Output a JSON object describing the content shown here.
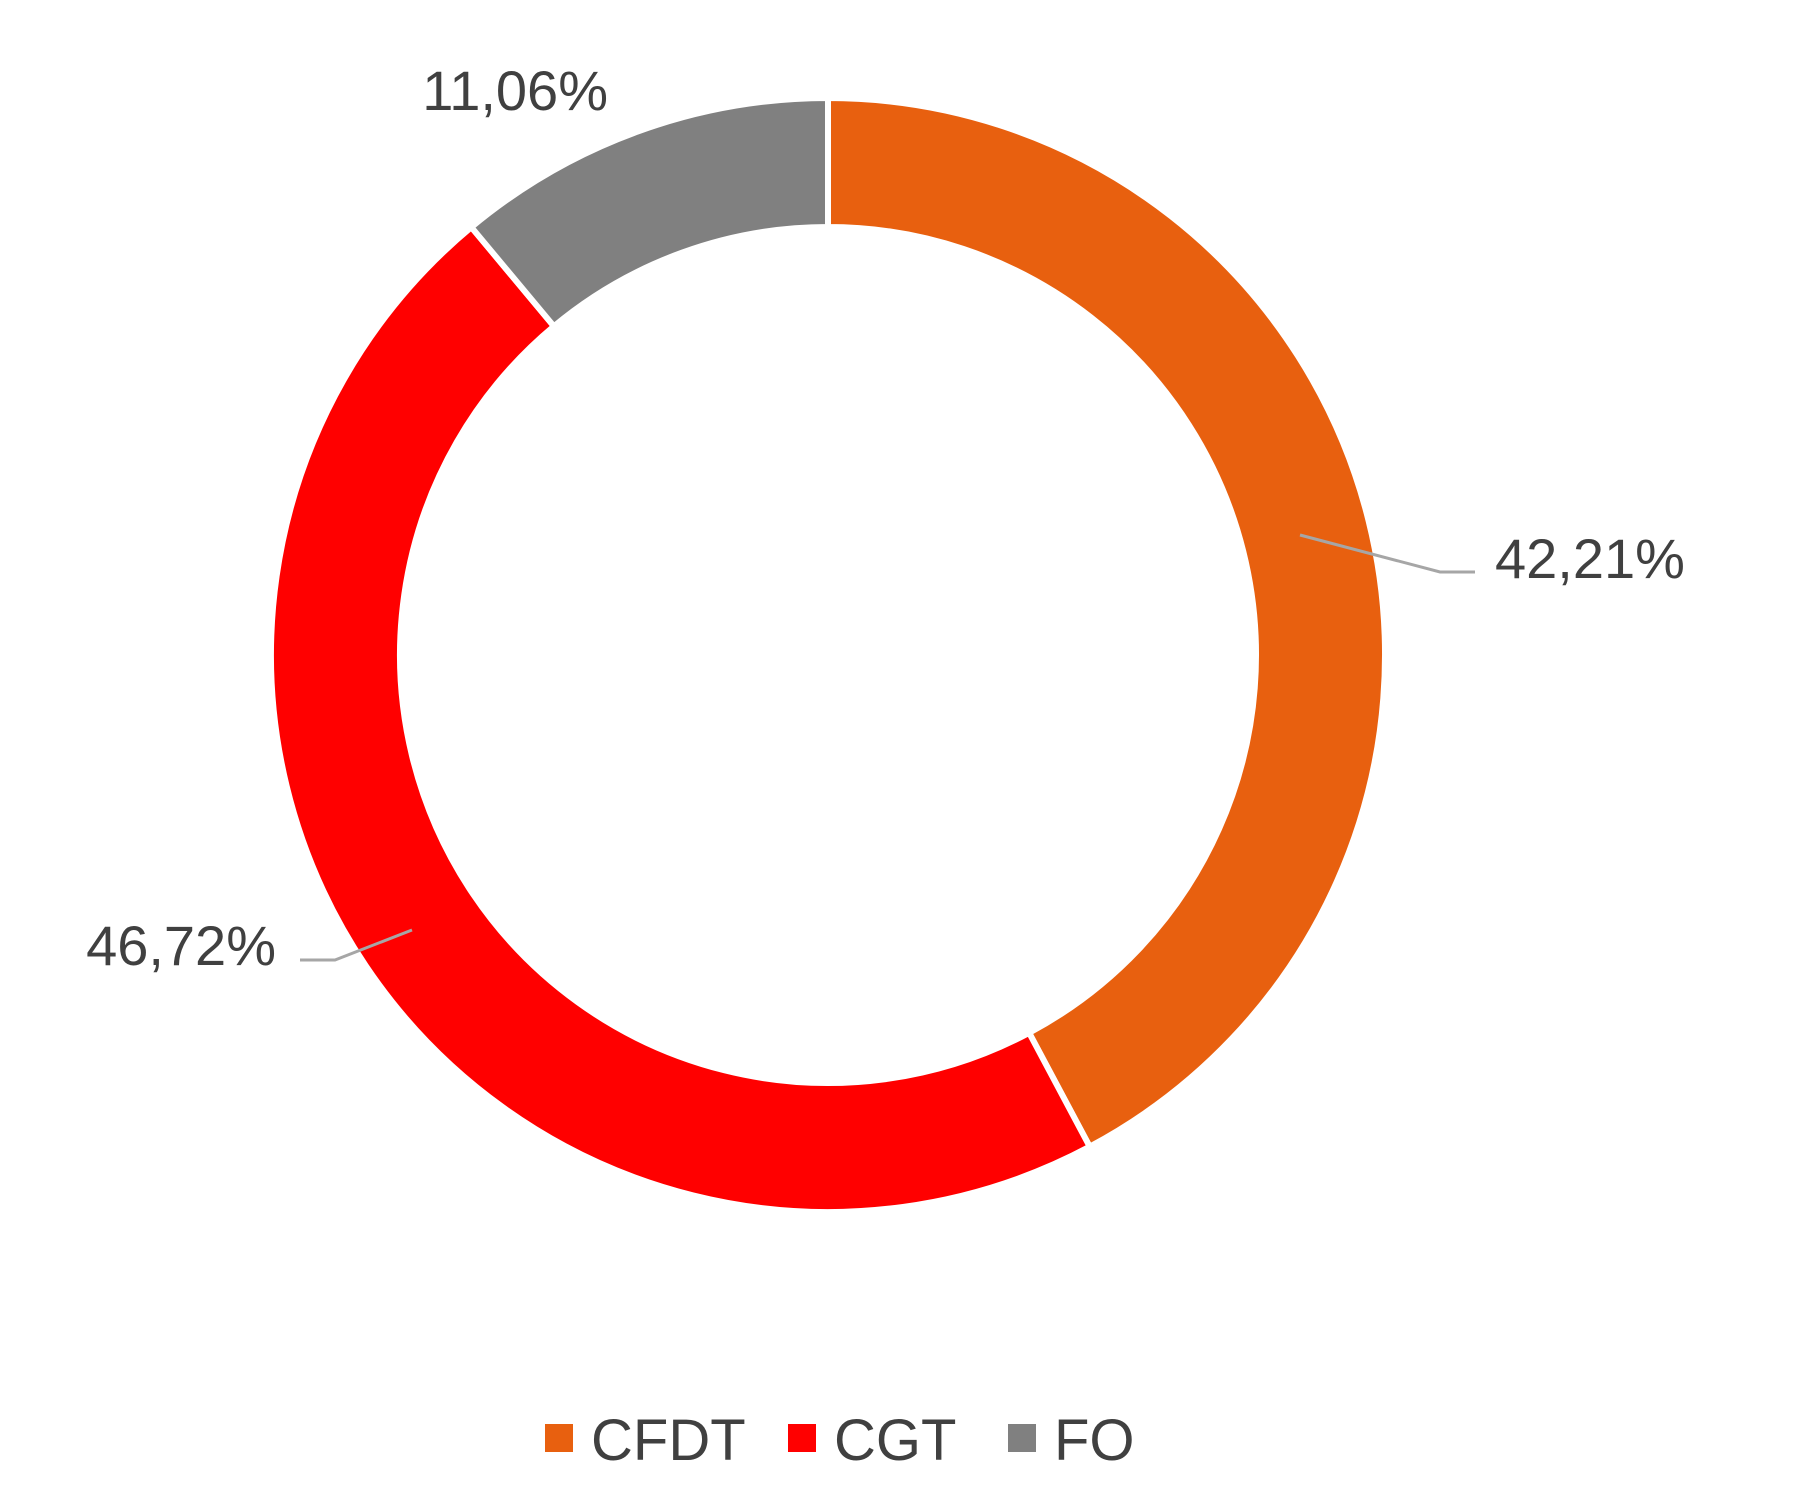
{
  "chart_data": {
    "type": "pie",
    "variant": "donut",
    "title": "",
    "slices": [
      {
        "name": "CFDT",
        "value": 42.21,
        "label": "42,21%",
        "color": "#E8600F"
      },
      {
        "name": "CGT",
        "value": 46.72,
        "label": "46,72%",
        "color": "#FF0000"
      },
      {
        "name": "FO",
        "value": 11.06,
        "label": "11,06%",
        "color": "#808080"
      }
    ],
    "legend": {
      "position": "bottom",
      "entries": [
        "CFDT",
        "CGT",
        "FO"
      ]
    },
    "leader_line_color": "#A6A6A6"
  }
}
